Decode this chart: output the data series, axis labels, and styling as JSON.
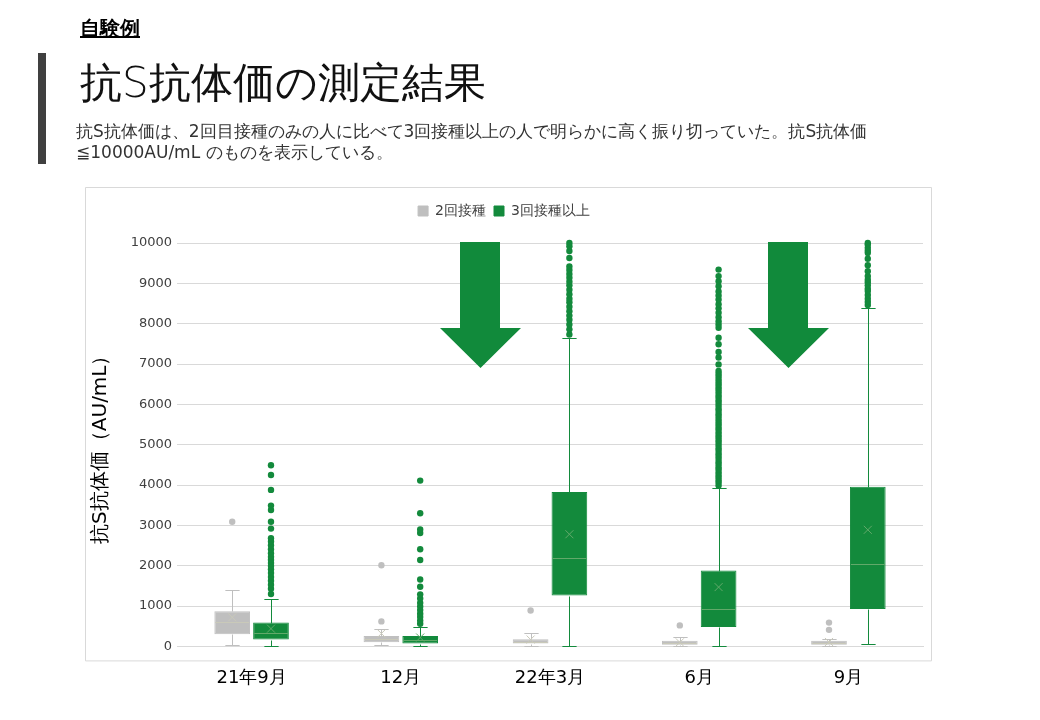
{
  "chart_data": {
    "type": "box",
    "title": "抗S抗体価の測定結果",
    "subtitle": "抗S抗体価は、2回目接種のみの人に比べて3回接種以上の人で明らかに高く振り切っていた。抗S抗体価≦10000AU/mL のものを表示している。",
    "annotations": [
      "自験例"
    ],
    "ylabel": "抗S抗体価（AU/mL）",
    "categories": [
      "21年9月",
      "12月",
      "22年3月",
      "6月",
      "9月"
    ],
    "series": [
      {
        "name": "2回接種",
        "color": "#bfbfbf",
        "boxes": [
          {
            "low": 40,
            "q1": 300,
            "median": 610,
            "q3": 870,
            "high": 1410,
            "mean": 720,
            "outliers": [
              3090
            ]
          },
          {
            "low": 30,
            "q1": 100,
            "median": 190,
            "q3": 260,
            "high": 430,
            "mean": 320,
            "outliers": [
              620,
              2010
            ]
          },
          {
            "low": 20,
            "q1": 70,
            "median": 120,
            "q3": 180,
            "high": 330,
            "mean": 170,
            "outliers": [
              890
            ]
          },
          {
            "low": 20,
            "q1": 40,
            "median": 80,
            "q3": 140,
            "high": 230,
            "mean": 100,
            "outliers": [
              520
            ]
          },
          {
            "low": 20,
            "q1": 40,
            "median": 80,
            "q3": 140,
            "high": 180,
            "mean": 110,
            "outliers": [
              410,
              590
            ]
          }
        ]
      },
      {
        "name": "3回接種以上",
        "color": "#138a3c",
        "boxes": [
          {
            "low": 0,
            "q1": 170,
            "median": 330,
            "q3": 590,
            "high": 1180,
            "mean": 440,
            "outliers": [
              1300,
              1430,
              1530,
              1630,
              1720,
              1820,
              1910,
              1990,
              2070,
              2150,
              2220,
              2310,
              2410,
              2510,
              2600,
              2680,
              2920,
              3090,
              3380,
              3490,
              3880,
              4250,
              4490
            ]
          },
          {
            "low": 0,
            "q1": 70,
            "median": 150,
            "q3": 260,
            "high": 490,
            "mean": 220,
            "outliers": [
              560,
              640,
              730,
              810,
              900,
              990,
              1080,
              1190,
              1290,
              1480,
              1660,
              2140,
              2410,
              2810,
              2900,
              3300,
              4110
            ]
          },
          {
            "low": 0,
            "q1": 1260,
            "median": 2180,
            "q3": 3830,
            "high": 7650,
            "mean": 2780,
            "outliers": [
              7730,
              7860,
              7980,
              8100,
              8200,
              8310,
              8420,
              8530,
              8620,
              8730,
              8840,
              8950,
              9040,
              9140,
              9230,
              9330,
              9420,
              9630,
              9800,
              9920,
              10000
            ]
          },
          {
            "low": 0,
            "q1": 480,
            "median": 930,
            "q3": 1880,
            "high": 3920,
            "mean": 1470,
            "outliers": [
              3990,
              4060,
              4120,
              4190,
              4250,
              4320,
              4390,
              4450,
              4520,
              4580,
              4650,
              4720,
              4780,
              4850,
              4910,
              4980,
              5050,
              5110,
              5180,
              5240,
              5310,
              5380,
              5440,
              5510,
              5570,
              5640,
              5710,
              5770,
              5840,
              5900,
              5970,
              6040,
              6100,
              6170,
              6230,
              6300,
              6370,
              6430,
              6500,
              6560,
              6630,
              6700,
              6760,
              6830,
              6990,
              7160,
              7300,
              7490,
              7650,
              7900,
              7980,
              8060,
              8160,
              8270,
              8380,
              8480,
              8600,
              8700,
              8800,
              8930,
              9050,
              9180,
              9340
            ]
          },
          {
            "low": 50,
            "q1": 930,
            "median": 2050,
            "q3": 3960,
            "high": 8380,
            "mean": 2890,
            "outliers": [
              8460,
              8540,
              8620,
              8710,
              8810,
              8870,
              8950,
              9030,
              9090,
              9180,
              9300,
              9450,
              9610,
              9750,
              9810,
              9880,
              9960,
              10000
            ]
          }
        ]
      }
    ],
    "ylim": [
      0,
      10000
    ],
    "yticks": [
      0,
      1000,
      2000,
      3000,
      4000,
      5000,
      6000,
      7000,
      8000,
      9000,
      10000
    ],
    "grid": "y",
    "legend": "top",
    "marker": "circle"
  }
}
